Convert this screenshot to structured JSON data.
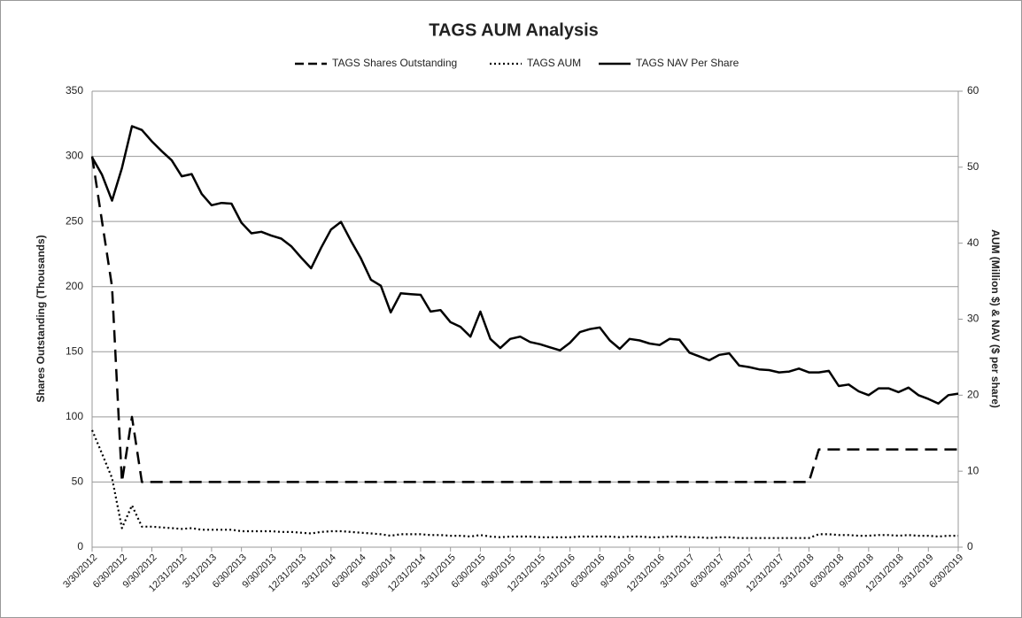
{
  "chart_data": {
    "type": "line",
    "title": "TAGS AUM Analysis",
    "y_label": "Shares Outstanding (Thousands)",
    "y2_label": "AUM (Million $) & NAV ($ per share)",
    "legend": "top",
    "grid": true,
    "categories": [
      "3/30/2012",
      null,
      null,
      "6/30/2012",
      null,
      null,
      "9/30/2012",
      null,
      null,
      "12/31/2012",
      null,
      null,
      "3/31/2013",
      null,
      null,
      "6/30/2013",
      null,
      null,
      "9/30/2013",
      null,
      null,
      "12/31/2013",
      null,
      null,
      "3/31/2014",
      null,
      null,
      "6/30/2014",
      null,
      null,
      "9/30/2014",
      null,
      null,
      "12/31/2014",
      null,
      null,
      "3/31/2015",
      null,
      null,
      "6/30/2015",
      null,
      null,
      "9/30/2015",
      null,
      null,
      "12/31/2015",
      null,
      null,
      "3/31/2016",
      null,
      null,
      "6/30/2016",
      null,
      null,
      "9/30/2016",
      null,
      null,
      "12/31/2016",
      null,
      null,
      "3/31/2017",
      null,
      null,
      "6/30/2017",
      null,
      null,
      "9/30/2017",
      null,
      null,
      "12/31/2017",
      null,
      null,
      "3/31/2018",
      null,
      null,
      "6/30/2018",
      null,
      null,
      "9/30/2018",
      null,
      null,
      "12/31/2018",
      null,
      null,
      "3/31/2019",
      null,
      null,
      "6/30/2019"
    ],
    "ylim": [
      0,
      350
    ],
    "yticks": [
      0,
      50,
      100,
      150,
      200,
      250,
      300,
      350
    ],
    "y2lim": [
      0,
      60
    ],
    "y2ticks": [
      0,
      10,
      20,
      30,
      40,
      50,
      60
    ],
    "series": [
      {
        "name": "TAGS Shares Outstanding",
        "color": "#000000",
        "dash": "dashed",
        "axis": "y",
        "values": [
          300,
          250,
          200,
          50,
          100,
          50,
          50,
          50,
          50,
          50,
          50,
          50,
          50,
          50,
          50,
          50,
          50,
          50,
          50,
          50,
          50,
          50,
          50,
          50,
          50,
          50,
          50,
          50,
          50,
          50,
          50,
          50,
          50,
          50,
          50,
          50,
          50,
          50,
          50,
          50,
          50,
          50,
          50,
          50,
          50,
          50,
          50,
          50,
          50,
          50,
          50,
          50,
          50,
          50,
          50,
          50,
          50,
          50,
          50,
          50,
          50,
          50,
          50,
          50,
          50,
          50,
          50,
          50,
          50,
          50,
          50,
          50,
          50,
          75,
          75,
          75,
          75,
          75,
          75,
          75,
          75,
          75,
          75,
          75,
          75,
          75,
          75,
          75
        ]
      },
      {
        "name": "TAGS AUM",
        "color": "#000000",
        "dash": "dotted",
        "axis": "y2",
        "values": [
          15.4,
          12.3,
          9.1,
          2.5,
          5.5,
          2.7,
          2.7,
          2.6,
          2.5,
          2.4,
          2.5,
          2.3,
          2.3,
          2.3,
          2.3,
          2.1,
          2.1,
          2.1,
          2.1,
          2,
          2,
          1.9,
          1.8,
          2,
          2.1,
          2.1,
          2,
          1.9,
          1.8,
          1.7,
          1.5,
          1.7,
          1.7,
          1.7,
          1.6,
          1.6,
          1.5,
          1.5,
          1.4,
          1.6,
          1.4,
          1.3,
          1.4,
          1.4,
          1.4,
          1.3,
          1.3,
          1.3,
          1.3,
          1.4,
          1.4,
          1.4,
          1.4,
          1.3,
          1.4,
          1.4,
          1.3,
          1.3,
          1.4,
          1.4,
          1.3,
          1.3,
          1.2,
          1.3,
          1.3,
          1.2,
          1.2,
          1.2,
          1.2,
          1.2,
          1.2,
          1.2,
          1.2,
          1.7,
          1.7,
          1.6,
          1.6,
          1.5,
          1.5,
          1.6,
          1.6,
          1.5,
          1.6,
          1.5,
          1.5,
          1.4,
          1.5,
          1.5
        ]
      },
      {
        "name": "TAGS NAV Per Share",
        "color": "#000000",
        "dash": "solid",
        "axis": "y2",
        "values": [
          51.3,
          49,
          45.6,
          49.9,
          55.4,
          54.9,
          53.4,
          52.1,
          50.9,
          48.8,
          49.1,
          46.5,
          45,
          45.3,
          45.2,
          42.7,
          41.3,
          41.5,
          41,
          40.6,
          39.6,
          38.1,
          36.7,
          39.4,
          41.8,
          42.8,
          40.3,
          38,
          35.2,
          34.4,
          30.9,
          33.4,
          33.3,
          33.2,
          31,
          31.2,
          29.6,
          29,
          27.7,
          31,
          27.4,
          26.2,
          27.4,
          27.7,
          27,
          26.7,
          26.3,
          25.9,
          26.9,
          28.3,
          28.7,
          28.9,
          27.2,
          26.1,
          27.4,
          27.2,
          26.8,
          26.6,
          27.4,
          27.3,
          25.6,
          25.1,
          24.6,
          25.3,
          25.5,
          23.9,
          23.7,
          23.4,
          23.3,
          23,
          23.1,
          23.5,
          23,
          23,
          23.2,
          21.2,
          21.4,
          20.5,
          20,
          20.9,
          20.9,
          20.4,
          21,
          20,
          19.5,
          18.9,
          20,
          20.2
        ]
      }
    ]
  }
}
